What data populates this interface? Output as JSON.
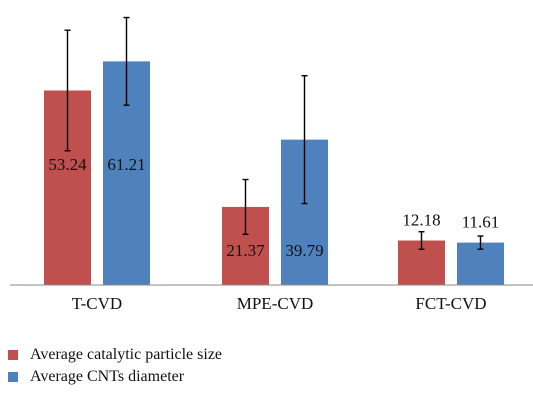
{
  "chart_data": {
    "type": "bar",
    "categories": [
      "T-CVD",
      "MPE-CVD",
      "FCT-CVD"
    ],
    "series": [
      {
        "name": "Average catalytic particle size",
        "color": "#c0504d",
        "values": [
          53.24,
          21.37,
          12.18
        ],
        "labels": [
          "53.24",
          "21.37",
          "12.18"
        ],
        "error": [
          16.5,
          7.5,
          2.4
        ]
      },
      {
        "name": "Average CNTs diameter",
        "color": "#4f81bd",
        "values": [
          61.21,
          39.79,
          11.61
        ],
        "labels": [
          "61.21",
          "39.79",
          "11.61"
        ],
        "error": [
          12.0,
          17.5,
          1.8
        ]
      }
    ],
    "ylim": [
      0,
      75
    ],
    "grid": false,
    "legend_position": "bottom-left"
  }
}
